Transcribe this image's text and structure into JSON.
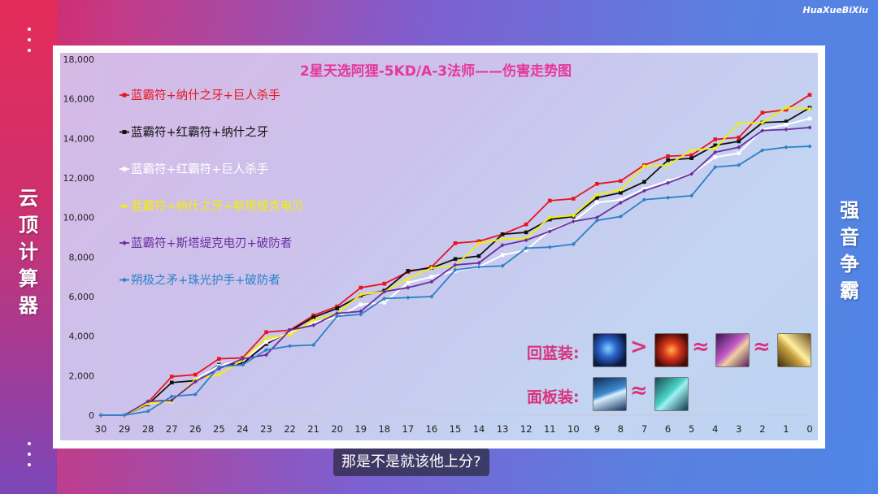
{
  "watermark": "HuaXueBiXiu",
  "side_left": [
    "云",
    "顶",
    "计",
    "算",
    "器"
  ],
  "side_right": [
    "强",
    "音",
    "争",
    "霸"
  ],
  "subtitle": "那是不是就该他上分?",
  "legend_labels": {
    "mana": "回蓝装:",
    "stat": "面板装:"
  },
  "item_icons": {
    "mana": [
      "blue-buff-icon",
      "archangels-staff-icon",
      "spear-of-shojin-icon",
      "shiv-icon"
    ],
    "stat": [
      "last-whisper-icon",
      "jeweled-gauntlet-icon"
    ],
    "mana_symbols": [
      ">",
      "≈",
      "≈"
    ],
    "stat_symbols": [
      "≈"
    ]
  },
  "chart_data": {
    "type": "line",
    "title": "2星天选阿狸-5KD/A-3法师——伤害走势图",
    "x": [
      30,
      29,
      28,
      27,
      26,
      25,
      24,
      23,
      22,
      21,
      20,
      19,
      18,
      17,
      16,
      15,
      14,
      13,
      12,
      11,
      10,
      9,
      8,
      7,
      6,
      5,
      4,
      3,
      2,
      1,
      0
    ],
    "ylim": [
      0,
      18000
    ],
    "yticks": [
      0,
      2000,
      4000,
      6000,
      8000,
      10000,
      12000,
      14000,
      16000,
      18000
    ],
    "ytick_labels": [
      "0",
      "2,000",
      "4,000",
      "6,000",
      "8,000",
      "10,000",
      "12,000",
      "14,000",
      "16,000",
      "18,000"
    ],
    "grid": false,
    "legend_position": "top-left",
    "series": [
      {
        "name": "蓝霸符+纳什之牙+巨人杀手",
        "color": "#e8141e",
        "marker": "square",
        "values": [
          0,
          0,
          650,
          1950,
          2050,
          2850,
          2900,
          4200,
          4300,
          5050,
          5500,
          6450,
          6650,
          7250,
          7500,
          8700,
          8800,
          9150,
          9650,
          10850,
          10950,
          11700,
          11850,
          12650,
          13100,
          13150,
          13950,
          14050,
          15300,
          15450,
          16200
        ]
      },
      {
        "name": "蓝霸符+红霸符+纳什之牙",
        "color": "#111111",
        "marker": "square",
        "values": [
          0,
          0,
          550,
          1650,
          1750,
          2550,
          2600,
          3600,
          4250,
          4950,
          5400,
          6050,
          6300,
          7300,
          7450,
          7900,
          8050,
          9150,
          9250,
          9900,
          10050,
          11000,
          11250,
          11800,
          12900,
          13000,
          13650,
          13850,
          14800,
          14850,
          15550
        ]
      },
      {
        "name": "蓝霸符+红霸符+巨人杀手",
        "color": "#ffffff",
        "marker": "square",
        "values": [
          0,
          0,
          600,
          700,
          1800,
          2500,
          2800,
          3700,
          4200,
          4700,
          4950,
          5600,
          5700,
          6700,
          7000,
          7300,
          7500,
          8100,
          8350,
          9350,
          9800,
          10750,
          10900,
          11450,
          11850,
          12200,
          13050,
          13250,
          14450,
          14700,
          15000
        ]
      },
      {
        "name": "蓝霸符+纳什之牙+斯塔缇克电刃",
        "color": "#f4ef00",
        "marker": "diamond",
        "values": [
          0,
          0,
          600,
          700,
          1800,
          2050,
          2800,
          3900,
          4050,
          4800,
          5150,
          6100,
          6250,
          6900,
          7450,
          7550,
          8700,
          8900,
          8950,
          10000,
          10100,
          11150,
          11400,
          12600,
          12650,
          13400,
          13500,
          14750,
          14800,
          15550,
          15500
        ]
      },
      {
        "name": "蓝霸符+斯塔缇克电刃+破防者",
        "color": "#6a2fa0",
        "marker": "diamond",
        "values": [
          0,
          0,
          700,
          750,
          1700,
          2350,
          2850,
          3050,
          4300,
          4550,
          5150,
          5250,
          6250,
          6450,
          6750,
          7600,
          7700,
          8600,
          8850,
          9300,
          9800,
          10000,
          10750,
          11350,
          11750,
          12200,
          13300,
          13550,
          14400,
          14450,
          14550
        ]
      },
      {
        "name": "朔极之矛+珠光护手+破防者",
        "color": "#2b82c8",
        "marker": "diamond",
        "values": [
          0,
          0,
          200,
          950,
          1050,
          2450,
          2550,
          3300,
          3500,
          3550,
          5000,
          5100,
          5900,
          5950,
          6000,
          7350,
          7500,
          7550,
          8450,
          8500,
          8650,
          9850,
          10050,
          10900,
          11000,
          11100,
          12550,
          12650,
          13400,
          13550,
          13600
        ]
      }
    ]
  }
}
